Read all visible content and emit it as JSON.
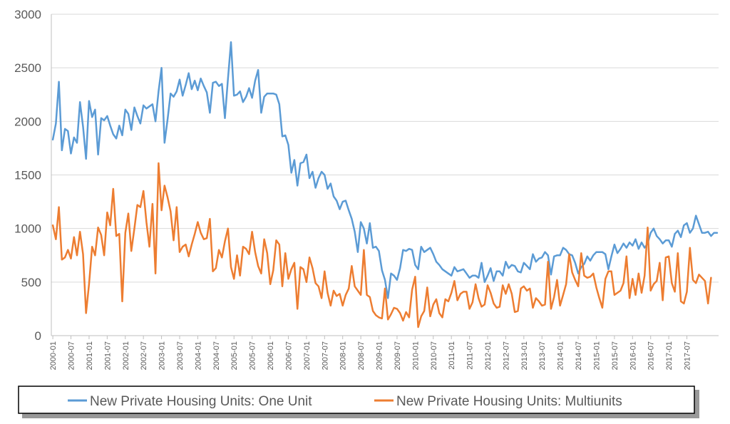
{
  "chart_data": {
    "type": "line",
    "title": "",
    "xlabel": "",
    "ylabel": "",
    "ylim": [
      0,
      3000
    ],
    "yticks": [
      0,
      500,
      1000,
      1500,
      2000,
      2500,
      3000
    ],
    "x_start": "2000-01",
    "xtick_labels": [
      "2000-01",
      "2000-07",
      "2001-01",
      "2001-07",
      "2002-01",
      "2002-07",
      "2003-01",
      "2003-07",
      "2004-01",
      "2004-07",
      "2005-01",
      "2005-07",
      "2006-01",
      "2006-07",
      "2007-01",
      "2007-07",
      "2008-01",
      "2008-07",
      "2009-01",
      "2009-07",
      "2010-01",
      "2010-07",
      "2011-01",
      "2011-07",
      "2012-01",
      "2012-07",
      "2013-01",
      "2013-07",
      "2014-01",
      "2014-07",
      "2015-01",
      "2015-07",
      "2016-01",
      "2016-07",
      "2017-01",
      "2017-07"
    ],
    "grid": "horizontal",
    "legend_position": "bottom",
    "series": [
      {
        "name": "New Private Housing Units: One Unit",
        "color": "#5B9BD5",
        "values": [
          1830,
          1980,
          2370,
          1730,
          1930,
          1910,
          1700,
          1850,
          1800,
          2180,
          1950,
          1650,
          2190,
          2040,
          2110,
          1690,
          2030,
          2010,
          2050,
          1960,
          1880,
          1840,
          1960,
          1870,
          2110,
          2070,
          1920,
          2130,
          2050,
          1980,
          2150,
          2120,
          2140,
          2160,
          2000,
          2280,
          2500,
          1800,
          2020,
          2260,
          2230,
          2280,
          2390,
          2240,
          2340,
          2450,
          2300,
          2380,
          2290,
          2400,
          2330,
          2270,
          2080,
          2360,
          2370,
          2330,
          2350,
          2030,
          2400,
          2740,
          2240,
          2250,
          2280,
          2180,
          2230,
          2310,
          2220,
          2380,
          2480,
          2080,
          2230,
          2260,
          2260,
          2260,
          2250,
          2160,
          1860,
          1870,
          1780,
          1520,
          1640,
          1400,
          1610,
          1620,
          1690,
          1470,
          1530,
          1380,
          1470,
          1530,
          1500,
          1370,
          1420,
          1300,
          1260,
          1180,
          1250,
          1260,
          1170,
          1090,
          970,
          780,
          1060,
          1000,
          860,
          1050,
          820,
          830,
          790,
          610,
          520,
          350,
          580,
          560,
          520,
          630,
          800,
          790,
          810,
          800,
          660,
          620,
          830,
          780,
          800,
          820,
          760,
          690,
          660,
          620,
          600,
          580,
          560,
          640,
          600,
          610,
          620,
          580,
          540,
          560,
          560,
          540,
          680,
          500,
          560,
          630,
          510,
          600,
          600,
          560,
          690,
          630,
          660,
          650,
          600,
          590,
          680,
          650,
          620,
          760,
          690,
          720,
          730,
          780,
          750,
          570,
          740,
          750,
          750,
          820,
          800,
          760,
          750,
          680,
          580,
          640,
          670,
          740,
          700,
          750,
          780,
          780,
          780,
          760,
          620,
          740,
          850,
          770,
          810,
          860,
          820,
          870,
          840,
          900,
          810,
          870,
          820,
          860,
          960,
          1000,
          930,
          900,
          860,
          890,
          890,
          830,
          950,
          980,
          920,
          1030,
          1050,
          960,
          1000,
          1120,
          1040,
          960,
          960,
          970,
          930,
          960,
          960
        ]
      },
      {
        "name": "New Private Housing Units: Multiunits",
        "color": "#ED7D31",
        "values": [
          1030,
          900,
          1200,
          710,
          730,
          800,
          720,
          920,
          750,
          970,
          760,
          210,
          480,
          830,
          750,
          1010,
          940,
          750,
          1150,
          1030,
          1370,
          930,
          950,
          320,
          960,
          1140,
          790,
          1000,
          1220,
          1200,
          1350,
          1060,
          830,
          1230,
          580,
          1610,
          1170,
          1400,
          1290,
          1160,
          890,
          1200,
          780,
          830,
          850,
          740,
          850,
          950,
          1060,
          960,
          900,
          910,
          1090,
          600,
          630,
          800,
          730,
          880,
          1000,
          640,
          530,
          750,
          560,
          830,
          810,
          760,
          970,
          780,
          650,
          580,
          900,
          770,
          480,
          610,
          890,
          850,
          460,
          770,
          530,
          620,
          680,
          250,
          640,
          620,
          500,
          730,
          630,
          490,
          460,
          350,
          600,
          400,
          280,
          420,
          370,
          390,
          280,
          380,
          440,
          650,
          460,
          420,
          380,
          800,
          380,
          360,
          230,
          190,
          170,
          160,
          440,
          150,
          200,
          260,
          250,
          210,
          140,
          220,
          170,
          430,
          550,
          80,
          180,
          230,
          450,
          180,
          290,
          340,
          210,
          170,
          340,
          320,
          400,
          510,
          330,
          390,
          410,
          410,
          250,
          310,
          480,
          350,
          270,
          290,
          470,
          400,
          300,
          260,
          270,
          470,
          390,
          480,
          390,
          220,
          230,
          440,
          460,
          420,
          440,
          260,
          350,
          320,
          280,
          290,
          690,
          250,
          360,
          520,
          280,
          380,
          480,
          760,
          590,
          520,
          460,
          770,
          560,
          540,
          550,
          580,
          450,
          350,
          260,
          530,
          600,
          600,
          380,
          400,
          420,
          490,
          740,
          350,
          530,
          380,
          580,
          400,
          560,
          1010,
          420,
          480,
          510,
          680,
          330,
          730,
          740,
          490,
          410,
          770,
          320,
          300,
          410,
          820,
          520,
          490,
          570,
          540,
          510,
          300,
          540
        ]
      }
    ]
  }
}
